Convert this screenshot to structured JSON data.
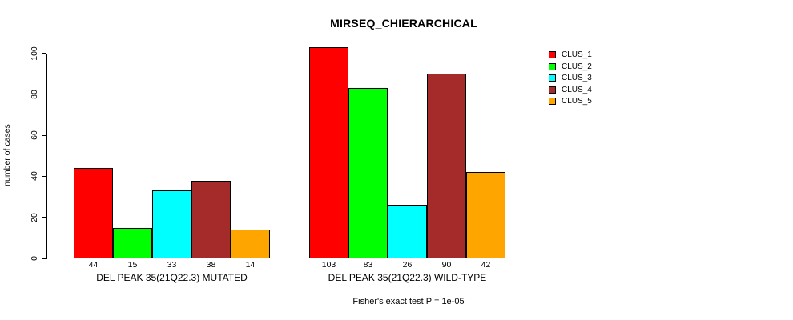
{
  "chart_data": {
    "type": "bar",
    "title": "MIRSEQ_CHIERARCHICAL",
    "ylabel": "number of cases",
    "xlabel": "",
    "ylim": [
      0,
      100
    ],
    "yticks": [
      0,
      20,
      40,
      60,
      80,
      100
    ],
    "grid": false,
    "legend_position": "right",
    "categories": [
      "DEL PEAK 35(21Q22.3) MUTATED",
      "DEL PEAK 35(21Q22.3) WILD-TYPE"
    ],
    "series": [
      {
        "name": "CLUS_1",
        "color": "#FF0000",
        "values": [
          44,
          103
        ]
      },
      {
        "name": "CLUS_2",
        "color": "#00FF00",
        "values": [
          15,
          83
        ]
      },
      {
        "name": "CLUS_3",
        "color": "#00FFFF",
        "values": [
          33,
          26
        ]
      },
      {
        "name": "CLUS_4",
        "color": "#A52A2A",
        "values": [
          38,
          90
        ]
      },
      {
        "name": "CLUS_5",
        "color": "#FFA500",
        "values": [
          14,
          42
        ]
      }
    ],
    "bar_value_labels": {
      "MUTATED": [
        44,
        15,
        33,
        38,
        14
      ],
      "WILD-TYPE": [
        103,
        83,
        26,
        90,
        42
      ]
    },
    "footnote": "Fisher's exact test P = 1e-05",
    "axis_color": "#000000",
    "bar_border_color": "#000000",
    "background_color": "#FFFFFF"
  }
}
